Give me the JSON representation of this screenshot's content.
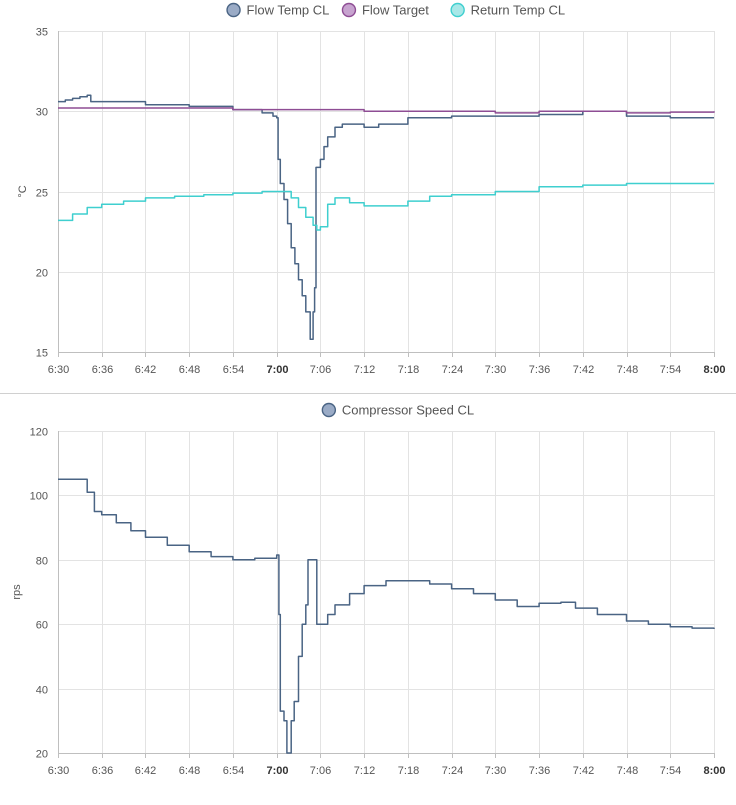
{
  "chart_data": [
    {
      "type": "line",
      "step": true,
      "ylabel": "°C",
      "ylim": [
        15,
        35
      ],
      "yticks": [
        15,
        20,
        25,
        30,
        35
      ],
      "xlim": [
        "6:30",
        "8:00"
      ],
      "xticks": [
        "6:30",
        "6:36",
        "6:42",
        "6:48",
        "6:54",
        "7:00",
        "7:06",
        "7:12",
        "7:18",
        "7:24",
        "7:30",
        "7:36",
        "7:42",
        "7:48",
        "7:54",
        "8:00"
      ],
      "bold_ticks": [
        "7:00",
        "8:00"
      ],
      "grid": true,
      "legend_position": "top-center",
      "series": [
        {
          "name": "Flow Temp CL",
          "color": "#4a6484",
          "fill": "#9aabc6",
          "points": [
            [
              "6:30",
              30.6
            ],
            [
              "6:31",
              30.7
            ],
            [
              "6:32",
              30.8
            ],
            [
              "6:33",
              30.9
            ],
            [
              "6:34",
              31.0
            ],
            [
              "6:34.5",
              30.6
            ],
            [
              "6:38",
              30.6
            ],
            [
              "6:42",
              30.4
            ],
            [
              "6:48",
              30.3
            ],
            [
              "6:54",
              30.1
            ],
            [
              "6:58",
              29.9
            ],
            [
              "6:59.5",
              29.7
            ],
            [
              "7:00",
              29.6
            ],
            [
              "7:00.2",
              27.0
            ],
            [
              "7:00.5",
              25.5
            ],
            [
              "7:01",
              24.5
            ],
            [
              "7:01.5",
              23.0
            ],
            [
              "7:02",
              21.5
            ],
            [
              "7:02.5",
              20.5
            ],
            [
              "7:03",
              19.5
            ],
            [
              "7:03.5",
              18.5
            ],
            [
              "7:04",
              17.5
            ],
            [
              "7:04.6",
              15.8
            ],
            [
              "7:05",
              17.5
            ],
            [
              "7:05.2",
              19.0
            ],
            [
              "7:05.4",
              26.5
            ],
            [
              "7:06",
              27.0
            ],
            [
              "7:06.5",
              27.8
            ],
            [
              "7:07",
              28.4
            ],
            [
              "7:08",
              29.0
            ],
            [
              "7:09",
              29.2
            ],
            [
              "7:10",
              29.2
            ],
            [
              "7:12",
              29.0
            ],
            [
              "7:14",
              29.2
            ],
            [
              "7:18",
              29.6
            ],
            [
              "7:24",
              29.7
            ],
            [
              "7:30",
              29.7
            ],
            [
              "7:36",
              29.8
            ],
            [
              "7:42",
              30.0
            ],
            [
              "7:48",
              29.7
            ],
            [
              "7:54",
              29.6
            ],
            [
              "8:00",
              29.6
            ]
          ]
        },
        {
          "name": "Flow Target",
          "color": "#8e4d94",
          "fill": "#c7a3cf",
          "points": [
            [
              "6:30",
              30.2
            ],
            [
              "6:42",
              30.2
            ],
            [
              "6:48",
              30.2
            ],
            [
              "6:54",
              30.1
            ],
            [
              "7:00",
              30.1
            ],
            [
              "7:12",
              30.0
            ],
            [
              "7:24",
              30.0
            ],
            [
              "7:30",
              29.9
            ],
            [
              "7:36",
              30.0
            ],
            [
              "7:42",
              30.0
            ],
            [
              "7:48",
              29.9
            ],
            [
              "7:54",
              29.95
            ],
            [
              "8:00",
              30.0
            ]
          ]
        },
        {
          "name": "Return Temp CL",
          "color": "#3fcfcf",
          "fill": "#a8e8e8",
          "points": [
            [
              "6:30",
              23.2
            ],
            [
              "6:32",
              23.6
            ],
            [
              "6:34",
              24.0
            ],
            [
              "6:36",
              24.2
            ],
            [
              "6:39",
              24.4
            ],
            [
              "6:42",
              24.6
            ],
            [
              "6:46",
              24.7
            ],
            [
              "6:50",
              24.8
            ],
            [
              "6:54",
              24.9
            ],
            [
              "6:58",
              25.0
            ],
            [
              "7:00",
              25.0
            ],
            [
              "7:01",
              25.0
            ],
            [
              "7:02",
              24.6
            ],
            [
              "7:03",
              24.0
            ],
            [
              "7:04",
              23.4
            ],
            [
              "7:05",
              22.9
            ],
            [
              "7:05.5",
              22.6
            ],
            [
              "7:06",
              22.8
            ],
            [
              "7:07",
              24.2
            ],
            [
              "7:08",
              24.6
            ],
            [
              "7:09",
              24.6
            ],
            [
              "7:10",
              24.3
            ],
            [
              "7:12",
              24.1
            ],
            [
              "7:15",
              24.1
            ],
            [
              "7:18",
              24.4
            ],
            [
              "7:21",
              24.7
            ],
            [
              "7:24",
              24.8
            ],
            [
              "7:30",
              25.0
            ],
            [
              "7:36",
              25.3
            ],
            [
              "7:42",
              25.4
            ],
            [
              "7:48",
              25.5
            ],
            [
              "7:54",
              25.5
            ],
            [
              "8:00",
              25.5
            ]
          ]
        }
      ]
    },
    {
      "type": "line",
      "step": true,
      "ylabel": "rps",
      "ylim": [
        20,
        120
      ],
      "yticks": [
        20,
        40,
        60,
        80,
        100,
        120
      ],
      "xlim": [
        "6:30",
        "8:00"
      ],
      "xticks": [
        "6:30",
        "6:36",
        "6:42",
        "6:48",
        "6:54",
        "7:00",
        "7:06",
        "7:12",
        "7:18",
        "7:24",
        "7:30",
        "7:36",
        "7:42",
        "7:48",
        "7:54",
        "8:00"
      ],
      "bold_ticks": [
        "7:00",
        "8:00"
      ],
      "grid": true,
      "legend_position": "top-center",
      "series": [
        {
          "name": "Compressor Speed CL",
          "color": "#4a6484",
          "fill": "#9aabc6",
          "points": [
            [
              "6:30",
              105
            ],
            [
              "6:33.5",
              105
            ],
            [
              "6:34",
              101
            ],
            [
              "6:35",
              95
            ],
            [
              "6:36",
              94
            ],
            [
              "6:38",
              91.5
            ],
            [
              "6:40",
              89
            ],
            [
              "6:42",
              87
            ],
            [
              "6:45",
              84.5
            ],
            [
              "6:48",
              82.5
            ],
            [
              "6:51",
              81
            ],
            [
              "6:54",
              80
            ],
            [
              "6:57",
              80.5
            ],
            [
              "7:00",
              81.5
            ],
            [
              "7:00.3",
              63
            ],
            [
              "7:00.5",
              33
            ],
            [
              "7:01",
              30
            ],
            [
              "7:01.4",
              20
            ],
            [
              "7:02",
              30
            ],
            [
              "7:02.4",
              36
            ],
            [
              "7:03",
              50
            ],
            [
              "7:03.5",
              60
            ],
            [
              "7:04",
              66
            ],
            [
              "7:04.3",
              80
            ],
            [
              "7:05.3",
              80
            ],
            [
              "7:05.5",
              60
            ],
            [
              "7:06.5",
              60
            ],
            [
              "7:07",
              63
            ],
            [
              "7:08",
              66
            ],
            [
              "7:10",
              69.5
            ],
            [
              "7:12",
              72
            ],
            [
              "7:15",
              73.5
            ],
            [
              "7:18",
              73.5
            ],
            [
              "7:21",
              72.5
            ],
            [
              "7:24",
              71
            ],
            [
              "7:27",
              69.5
            ],
            [
              "7:30",
              67.5
            ],
            [
              "7:33",
              65.5
            ],
            [
              "7:36",
              66.5
            ],
            [
              "7:39",
              66.8
            ],
            [
              "7:41",
              65
            ],
            [
              "7:44",
              63
            ],
            [
              "7:48",
              61
            ],
            [
              "7:51",
              60
            ],
            [
              "7:54",
              59.2
            ],
            [
              "7:57",
              58.8
            ],
            [
              "8:00",
              58.5
            ]
          ]
        }
      ]
    }
  ]
}
